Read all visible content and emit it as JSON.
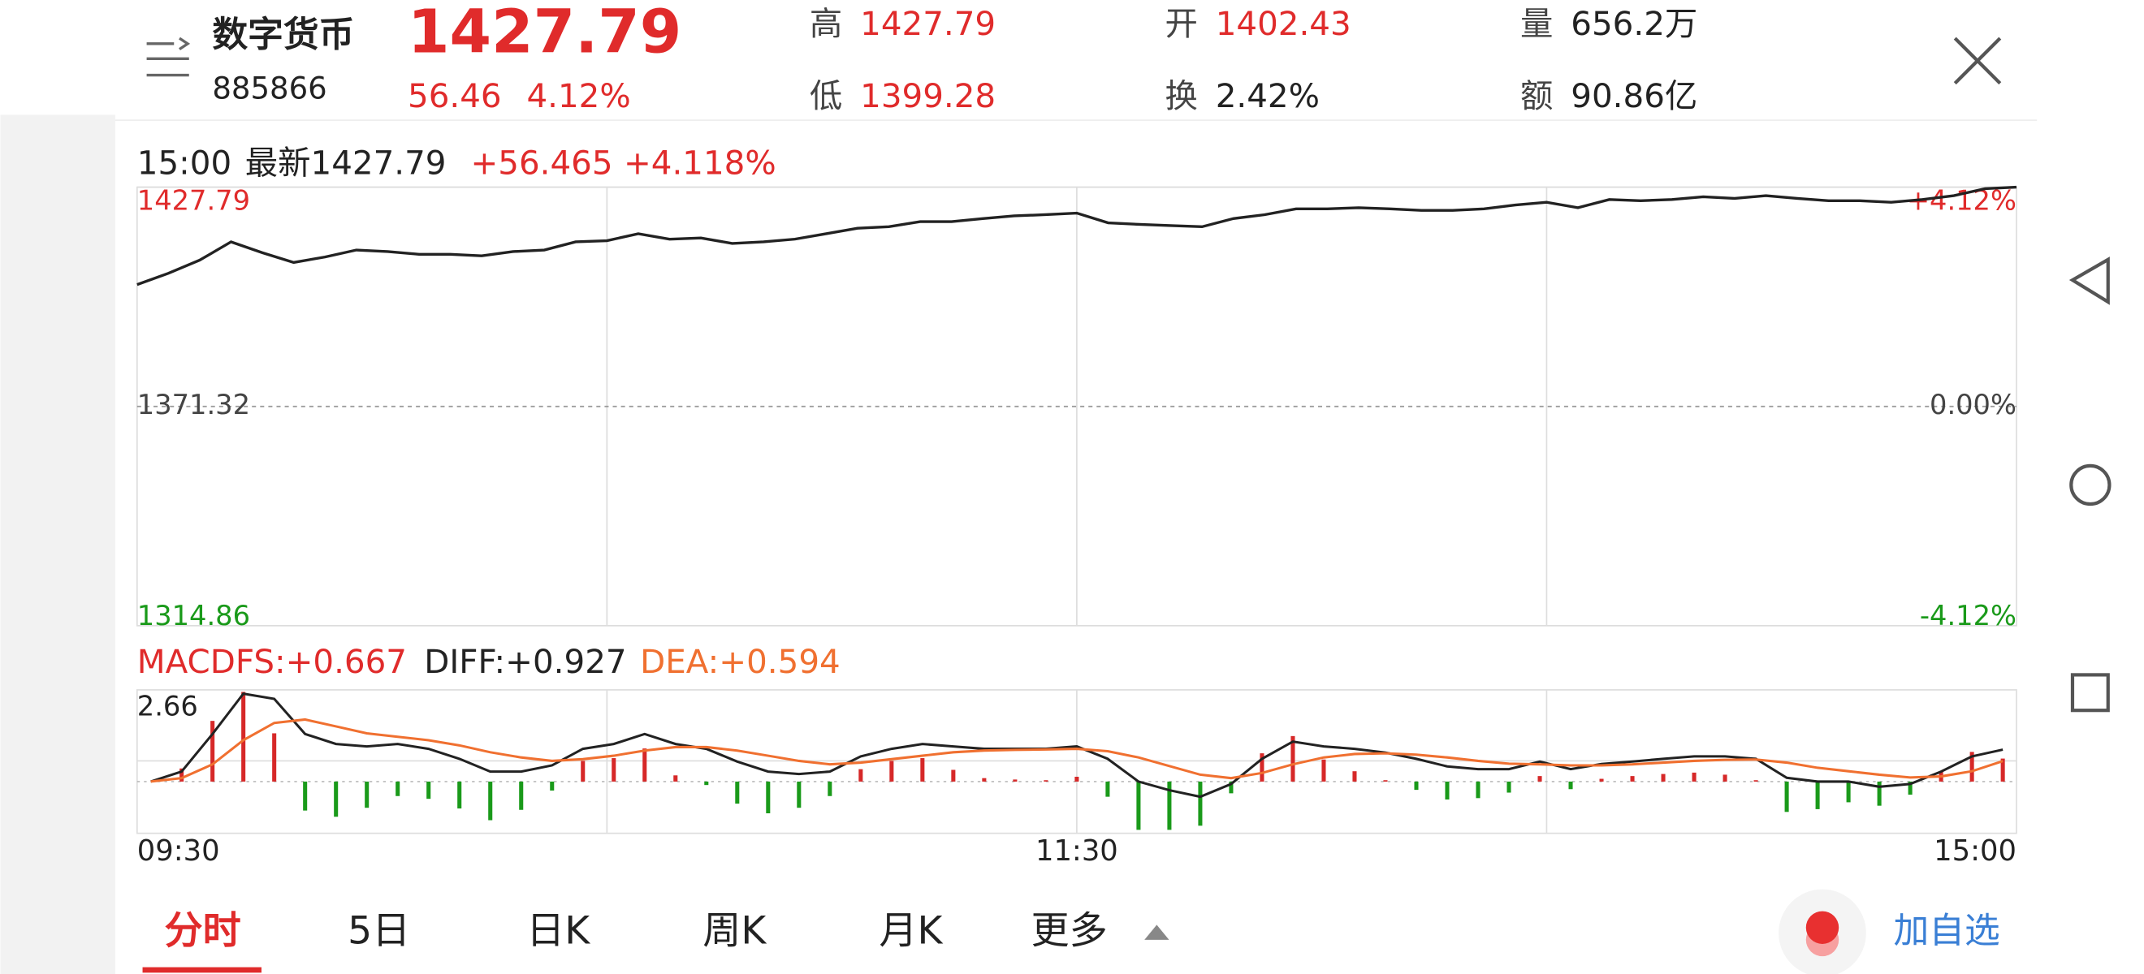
{
  "header": {
    "title": "数字货币",
    "code": "885866",
    "price": "1427.79",
    "change": "56.46",
    "change_pct": "4.12%",
    "stats": [
      {
        "label": "高",
        "value": "1427.79"
      },
      {
        "label": "开",
        "value": "1402.43"
      },
      {
        "label": "量",
        "value": "656.2万"
      },
      {
        "label": "低",
        "value": "1399.28"
      },
      {
        "label": "换",
        "value": "2.42%"
      },
      {
        "label": "额",
        "value": "90.86亿"
      }
    ]
  },
  "info": {
    "time": "15:00",
    "latest": "最新1427.79",
    "change": "+56.465",
    "change_pct": "+4.118%"
  },
  "chart_data": [
    {
      "type": "line",
      "color": "#222222",
      "categories": [
        "09:30",
        null,
        null,
        null,
        null,
        null,
        null,
        null,
        null,
        null,
        null,
        null,
        null,
        null,
        null,
        null,
        null,
        null,
        null,
        null,
        null,
        null,
        null,
        null,
        null,
        null,
        null,
        null,
        null,
        null,
        "11:30",
        null,
        null,
        null,
        null,
        null,
        null,
        null,
        null,
        null,
        null,
        null,
        null,
        null,
        null,
        null,
        null,
        null,
        null,
        null,
        null,
        null,
        null,
        null,
        null,
        null,
        null,
        null,
        null,
        null,
        "15:00"
      ],
      "values": [
        1402.7,
        1405.6,
        1409,
        1413.7,
        1410.9,
        1408.4,
        1409.8,
        1411.6,
        1411.2,
        1410.5,
        1410.5,
        1410.1,
        1411.2,
        1411.6,
        1413.7,
        1414,
        1415.8,
        1414.4,
        1414.7,
        1413.3,
        1413.7,
        1414.4,
        1415.8,
        1417.2,
        1417.6,
        1418.9,
        1418.9,
        1419.7,
        1420.4,
        1420.7,
        1421.1,
        1418.6,
        1418.2,
        1417.9,
        1417.6,
        1419.7,
        1420.7,
        1422.2,
        1422.2,
        1422.5,
        1422.2,
        1421.8,
        1421.8,
        1422.2,
        1423.2,
        1423.9,
        1422.5,
        1424.6,
        1424.3,
        1424.6,
        1425.3,
        1424.9,
        1425.6,
        1424.9,
        1424.3,
        1424.3,
        1423.9,
        1424.6,
        1425.6,
        1427.4,
        1427.79
      ],
      "ylim": [
        1314.86,
        1427.79
      ],
      "yticks": [
        1314.86,
        1371.32,
        1427.79
      ],
      "y2lim": [
        -4.12,
        4.12
      ],
      "y2ticks": [
        {
          "value": -4.12,
          "label": "-4.12%"
        },
        {
          "value": 0,
          "label": "0.00%"
        },
        {
          "value": 4.12,
          "label": "+4.12%"
        }
      ]
    },
    {
      "type": "macd",
      "ylim": [
        -1.5,
        2.66
      ],
      "yticks": [
        2.66
      ],
      "up_color": "#d62828",
      "down_color": "#1a9a1a",
      "series": [
        {
          "name": "MACDFS:+0.667",
          "kind": "bar",
          "color": "#e02b2b",
          "values": [
            0,
            0.38,
            1.76,
            2.6,
            1.4,
            -0.84,
            -1.02,
            -0.76,
            -0.42,
            -0.5,
            -0.78,
            -1.12,
            -0.82,
            -0.26,
            0.6,
            0.68,
            0.96,
            0.18,
            -0.1,
            -0.64,
            -0.92,
            -0.76,
            -0.42,
            0.36,
            0.6,
            0.68,
            0.34,
            0.1,
            0.06,
            0.04,
            0.14,
            -0.44,
            -1.4,
            -1.4,
            -1.28,
            -0.34,
            0.82,
            1.32,
            0.64,
            0.3,
            0.04,
            -0.24,
            -0.52,
            -0.48,
            -0.32,
            0.16,
            -0.22,
            0.08,
            0.16,
            0.22,
            0.26,
            0.2,
            0.04,
            -0.88,
            -0.8,
            -0.6,
            -0.7,
            -0.38,
            0.28,
            0.86,
            0.667
          ]
        },
        {
          "name": "DIFF:+0.927",
          "kind": "line",
          "color": "#222222",
          "values": [
            0,
            0.29,
            1.38,
            2.55,
            2.4,
            1.38,
            1.09,
            1.02,
            1.09,
            0.95,
            0.66,
            0.29,
            0.29,
            0.47,
            0.95,
            1.09,
            1.38,
            1.09,
            0.95,
            0.58,
            0.29,
            0.22,
            0.29,
            0.73,
            0.95,
            1.09,
            1.02,
            0.95,
            0.95,
            0.95,
            1.02,
            0.66,
            0,
            -0.25,
            -0.44,
            -0.07,
            0.66,
            1.16,
            1.02,
            0.95,
            0.84,
            0.66,
            0.44,
            0.36,
            0.36,
            0.58,
            0.36,
            0.51,
            0.58,
            0.66,
            0.73,
            0.73,
            0.66,
            0.11,
            0,
            0,
            -0.15,
            -0.07,
            0.29,
            0.73,
            0.927
          ]
        },
        {
          "name": "DEA:+0.594",
          "kind": "line",
          "color": "#f07030",
          "values": [
            0,
            0.1,
            0.5,
            1.2,
            1.7,
            1.8,
            1.6,
            1.4,
            1.3,
            1.2,
            1.05,
            0.85,
            0.7,
            0.6,
            0.65,
            0.75,
            0.9,
            1.0,
            1.0,
            0.9,
            0.75,
            0.6,
            0.5,
            0.55,
            0.65,
            0.75,
            0.85,
            0.9,
            0.92,
            0.93,
            0.95,
            0.88,
            0.7,
            0.45,
            0.2,
            0.1,
            0.25,
            0.5,
            0.7,
            0.8,
            0.82,
            0.78,
            0.7,
            0.6,
            0.52,
            0.5,
            0.47,
            0.47,
            0.5,
            0.55,
            0.6,
            0.63,
            0.64,
            0.55,
            0.4,
            0.3,
            0.2,
            0.12,
            0.15,
            0.3,
            0.594
          ]
        }
      ]
    }
  ],
  "tabs": [
    "分时",
    "5日",
    "日K",
    "周K",
    "月K",
    "更多"
  ],
  "add_button": "加自选"
}
